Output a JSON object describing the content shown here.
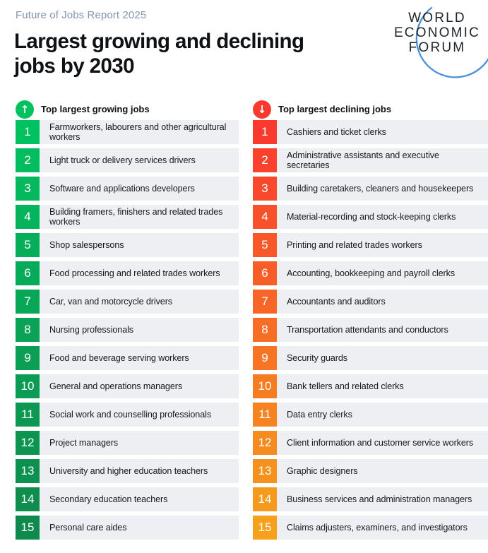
{
  "header": {
    "kicker": "Future of Jobs Report 2025",
    "title_lines": [
      "Largest growing and declining",
      "jobs by 2030"
    ]
  },
  "logo": {
    "lines": [
      "WORLD",
      "ECONOMIC",
      "FORUM"
    ],
    "arc_color": "#4a90d9",
    "text_color": "#1c242b"
  },
  "colors": {
    "row_bg": "#edeff3",
    "kicker_text": "#8295ad",
    "title_text": "#0f1215"
  },
  "columns": [
    {
      "id": "growing",
      "heading": "Top largest growing jobs",
      "icon": "arrow-up-circle-icon",
      "arrow": "↑",
      "color_stops": [
        "#00c160",
        "#09a256",
        "#0f8a4e"
      ],
      "items": [
        "Farmworkers, labourers and other agricultural workers",
        "Light truck or delivery services drivers",
        "Software and applications developers",
        "Building framers, finishers and related trades workers",
        "Shop salespersons",
        "Food processing and related trades workers",
        "Car, van and motorcycle drivers",
        "Nursing professionals",
        "Food and beverage serving workers",
        "General and operations managers",
        "Social work and counselling professionals",
        "Project managers",
        "University and higher education teachers",
        "Secondary education teachers",
        "Personal care aides"
      ]
    },
    {
      "id": "declining",
      "heading": "Top largest declining jobs",
      "icon": "arrow-down-circle-icon",
      "arrow": "↓",
      "color_stops": [
        "#fa3a2f",
        "#f66d24",
        "#f5a11b"
      ],
      "items": [
        "Cashiers and ticket clerks",
        "Administrative assistants and executive secretaries",
        "Building caretakers, cleaners and housekeepers",
        "Material-recording and stock-keeping clerks",
        "Printing and related trades workers",
        "Accounting, bookkeeping and payroll clerks",
        "Accountants and auditors",
        "Transportation attendants and conductors",
        "Security guards",
        "Bank tellers and related clerks",
        "Data entry clerks",
        "Client information and customer service workers",
        "Graphic designers",
        "Business services and administration managers",
        "Claims adjusters, examiners, and investigators"
      ]
    }
  ],
  "chart_data": {
    "type": "table",
    "title": "Largest growing and declining jobs by 2030",
    "subtitle": "Future of Jobs Report 2025",
    "categories": [
      1,
      2,
      3,
      4,
      5,
      6,
      7,
      8,
      9,
      10,
      11,
      12,
      13,
      14,
      15
    ],
    "series": [
      {
        "name": "Top largest growing jobs",
        "values": [
          "Farmworkers, labourers and other agricultural workers",
          "Light truck or delivery services drivers",
          "Software and applications developers",
          "Building framers, finishers and related trades workers",
          "Shop salespersons",
          "Food processing and related trades workers",
          "Car, van and motorcycle drivers",
          "Nursing professionals",
          "Food and beverage serving workers",
          "General and operations managers",
          "Social work and counselling professionals",
          "Project managers",
          "University and higher education teachers",
          "Secondary education teachers",
          "Personal care aides"
        ]
      },
      {
        "name": "Top largest declining jobs",
        "values": [
          "Cashiers and ticket clerks",
          "Administrative assistants and executive secretaries",
          "Building caretakers, cleaners and housekeepers",
          "Material-recording and stock-keeping clerks",
          "Printing and related trades workers",
          "Accounting, bookkeeping and payroll clerks",
          "Accountants and auditors",
          "Transportation attendants and conductors",
          "Security guards",
          "Bank tellers and related clerks",
          "Data entry clerks",
          "Client information and customer service workers",
          "Graphic designers",
          "Business services and administration managers",
          "Claims adjusters, examiners, and investigators"
        ]
      }
    ]
  }
}
